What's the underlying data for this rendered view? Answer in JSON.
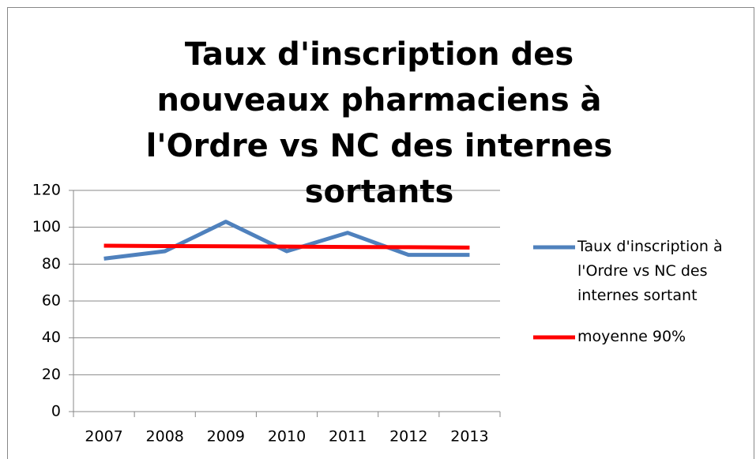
{
  "chart_data": {
    "type": "line",
    "title": "Taux d'inscription des nouveaux pharmaciens à l'Ordre vs NC des internes sortants",
    "categories": [
      "2007",
      "2008",
      "2009",
      "2010",
      "2011",
      "2012",
      "2013"
    ],
    "series": [
      {
        "name": "Taux d'inscription à l'Ordre vs NC des internes sortant",
        "color": "#4f81bd",
        "values": [
          83,
          87,
          103,
          87,
          97,
          85,
          85
        ]
      },
      {
        "name": "moyenne 90%",
        "color": "#ff0000",
        "values": [
          90,
          89.8,
          89.7,
          89.5,
          89.3,
          89.2,
          89
        ]
      }
    ],
    "ylim": [
      0,
      120
    ],
    "yticks": [
      0,
      20,
      40,
      60,
      80,
      100,
      120
    ],
    "grid": true,
    "legend": "right"
  }
}
